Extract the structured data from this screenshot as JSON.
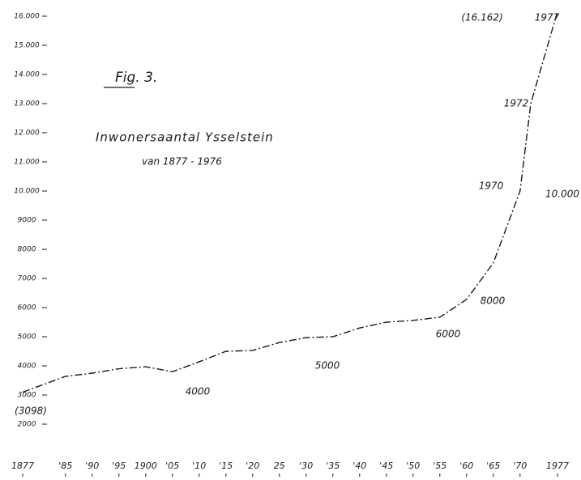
{
  "chart_data": {
    "type": "line",
    "title": "Fig. 3.",
    "subtitle": "Inwonersaantal Ysselstein",
    "caption": "van 1877 - 1976",
    "x": [
      1877,
      1885,
      1890,
      1895,
      1900,
      1905,
      1910,
      1915,
      1920,
      1925,
      1930,
      1935,
      1940,
      1945,
      1950,
      1955,
      1960,
      1965,
      1970,
      1972,
      1977
    ],
    "values": [
      3098,
      3640,
      3750,
      3900,
      3970,
      3800,
      4140,
      4500,
      4530,
      4800,
      4970,
      5000,
      5300,
      5500,
      5560,
      5670,
      6280,
      7530,
      10000,
      13000,
      16162
    ],
    "color": "#1a1a1a",
    "xlim": [
      1877,
      1977
    ],
    "xticks": [
      {
        "value": 1877,
        "label": "1877"
      },
      {
        "value": 1885,
        "label": "'85"
      },
      {
        "value": 1890,
        "label": "'90"
      },
      {
        "value": 1895,
        "label": "'95"
      },
      {
        "value": 1900,
        "label": "1900"
      },
      {
        "value": 1905,
        "label": "'05"
      },
      {
        "value": 1910,
        "label": "'10"
      },
      {
        "value": 1915,
        "label": "'15"
      },
      {
        "value": 1920,
        "label": "'20"
      },
      {
        "value": 1925,
        "label": "25"
      },
      {
        "value": 1930,
        "label": "'30"
      },
      {
        "value": 1935,
        "label": "'35"
      },
      {
        "value": 1940,
        "label": "'40"
      },
      {
        "value": 1945,
        "label": "'45"
      },
      {
        "value": 1950,
        "label": "'50"
      },
      {
        "value": 1955,
        "label": "'55"
      },
      {
        "value": 1960,
        "label": "'60"
      },
      {
        "value": 1965,
        "label": "'65"
      },
      {
        "value": 1970,
        "label": "'70"
      },
      {
        "value": 1977,
        "label": "1977"
      }
    ],
    "ylim": [
      2000,
      16000
    ],
    "yticks": [
      {
        "value": 16000,
        "label": "16.000"
      },
      {
        "value": 15000,
        "label": "15.000"
      },
      {
        "value": 14000,
        "label": "14.000"
      },
      {
        "value": 13000,
        "label": "13.000"
      },
      {
        "value": 12000,
        "label": "12.000"
      },
      {
        "value": 11000,
        "label": "11.000"
      },
      {
        "value": 10000,
        "label": "10.000"
      },
      9000,
      8000,
      7000,
      6000,
      5000,
      4000,
      3000,
      2000
    ],
    "annotations": [
      "(16.162)",
      "1977",
      "1972",
      "1970",
      "10.000",
      "8000",
      "6000",
      "5000",
      "4000",
      "(3098)"
    ]
  }
}
